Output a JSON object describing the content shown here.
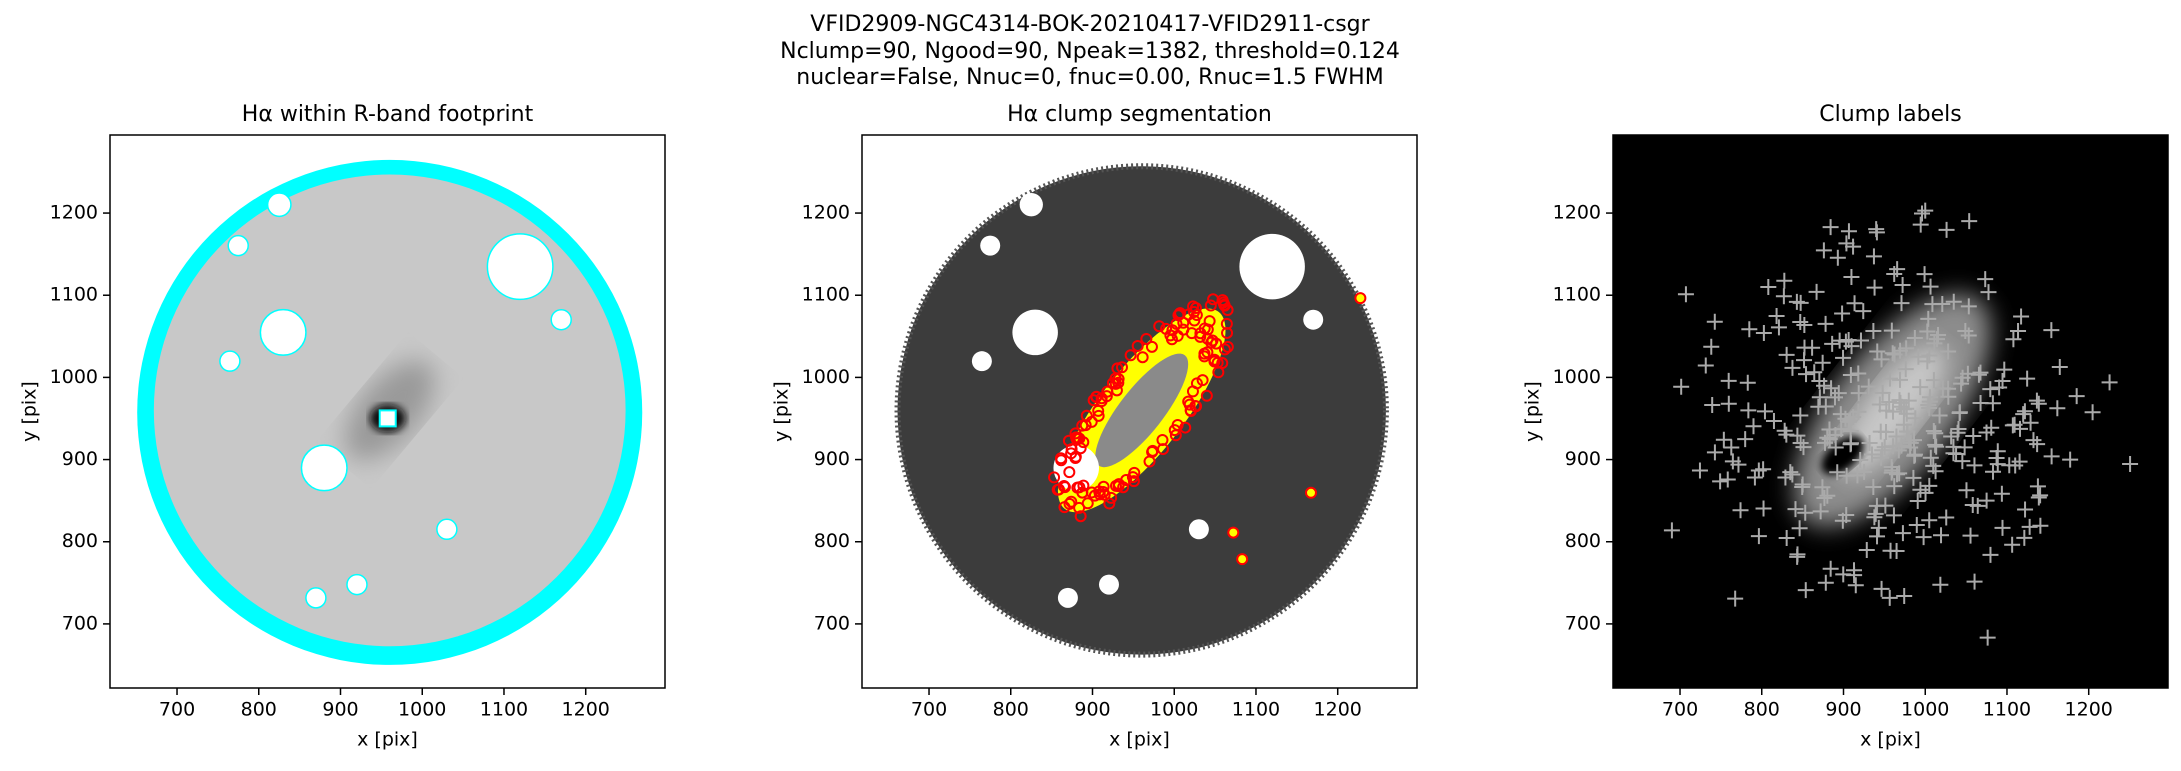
{
  "suptitle": [
    "VFID2909-NGC4314-BOK-20210417-VFID2911-csgr",
    "Nclump=90, Ngood=90, Npeak=1382, threshold=0.124",
    "nuclear=False, Nnuc=0, fnuc=0.00, Rnuc=1.5 FWHM"
  ],
  "chart_data": [
    {
      "type": "image",
      "title": "Hα within R-band footprint",
      "xlabel": "x [pix]",
      "ylabel": "y [pix]",
      "xlim": [
        618,
        1297
      ],
      "ylim": [
        622,
        1295
      ],
      "xticks": [
        700,
        800,
        900,
        1000,
        1100,
        1200
      ],
      "yticks": [
        700,
        800,
        900,
        1000,
        1100,
        1200
      ]
    },
    {
      "type": "image",
      "title": "Hα clump segmentation",
      "xlabel": "x [pix]",
      "ylabel": "y [pix]",
      "xlim": [
        618,
        1297
      ],
      "ylim": [
        622,
        1295
      ],
      "xticks": [
        700,
        800,
        900,
        1000,
        1100,
        1200
      ],
      "yticks": [
        700,
        800,
        900,
        1000,
        1100,
        1200
      ]
    },
    {
      "type": "image",
      "title": "Clump labels",
      "xlabel": "x [pix]",
      "ylabel": "y [pix]",
      "xlim": [
        618,
        1297
      ],
      "ylim": [
        622,
        1295
      ],
      "xticks": [
        700,
        800,
        900,
        1000,
        1100,
        1200
      ],
      "yticks": [
        700,
        800,
        900,
        1000,
        1100,
        1200
      ]
    }
  ]
}
